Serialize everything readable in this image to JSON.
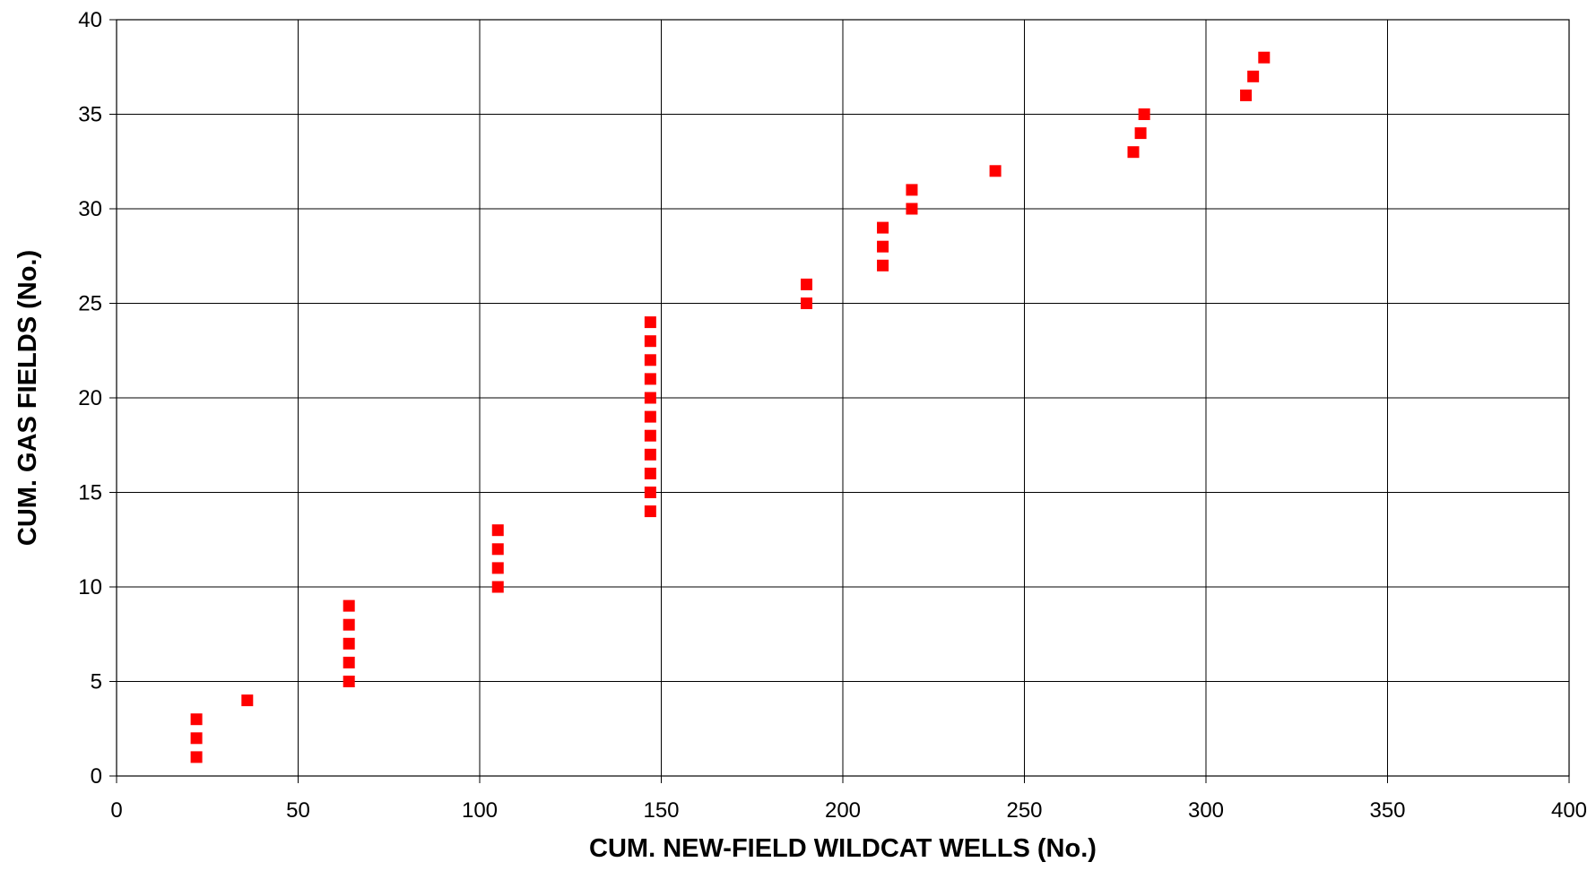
{
  "chart_data": {
    "type": "scatter",
    "title": "",
    "xlabel": "CUM. NEW-FIELD WILDCAT WELLS (No.)",
    "ylabel": "CUM. GAS FIELDS (No.)",
    "xlim": [
      0,
      400
    ],
    "ylim": [
      0,
      40
    ],
    "x_ticks": [
      0,
      50,
      100,
      150,
      200,
      250,
      300,
      350,
      400
    ],
    "y_ticks": [
      0,
      5,
      10,
      15,
      20,
      25,
      30,
      35,
      40
    ],
    "x_tick_labels": [
      "0",
      "50",
      "100",
      "150",
      "200",
      "250",
      "300",
      "350",
      "400"
    ],
    "y_tick_labels": [
      "0",
      "5",
      "10",
      "15",
      "20",
      "25",
      "30",
      "35",
      "40"
    ],
    "grid": true,
    "legend": "none",
    "marker": "square",
    "marker_color": "#ff0000",
    "series": [
      {
        "points": [
          [
            22,
            1
          ],
          [
            22,
            2
          ],
          [
            22,
            3
          ],
          [
            36,
            4
          ],
          [
            64,
            5
          ],
          [
            64,
            6
          ],
          [
            64,
            7
          ],
          [
            64,
            8
          ],
          [
            64,
            9
          ],
          [
            105,
            10
          ],
          [
            105,
            11
          ],
          [
            105,
            12
          ],
          [
            105,
            13
          ],
          [
            147,
            14
          ],
          [
            147,
            15
          ],
          [
            147,
            16
          ],
          [
            147,
            17
          ],
          [
            147,
            18
          ],
          [
            147,
            19
          ],
          [
            147,
            20
          ],
          [
            147,
            21
          ],
          [
            147,
            22
          ],
          [
            147,
            23
          ],
          [
            147,
            24
          ],
          [
            190,
            25
          ],
          [
            190,
            26
          ],
          [
            211,
            27
          ],
          [
            211,
            28
          ],
          [
            211,
            29
          ],
          [
            219,
            30
          ],
          [
            219,
            31
          ],
          [
            242,
            32
          ],
          [
            280,
            33
          ],
          [
            282,
            34
          ],
          [
            283,
            35
          ],
          [
            311,
            36
          ],
          [
            313,
            37
          ],
          [
            316,
            38
          ]
        ]
      }
    ]
  }
}
